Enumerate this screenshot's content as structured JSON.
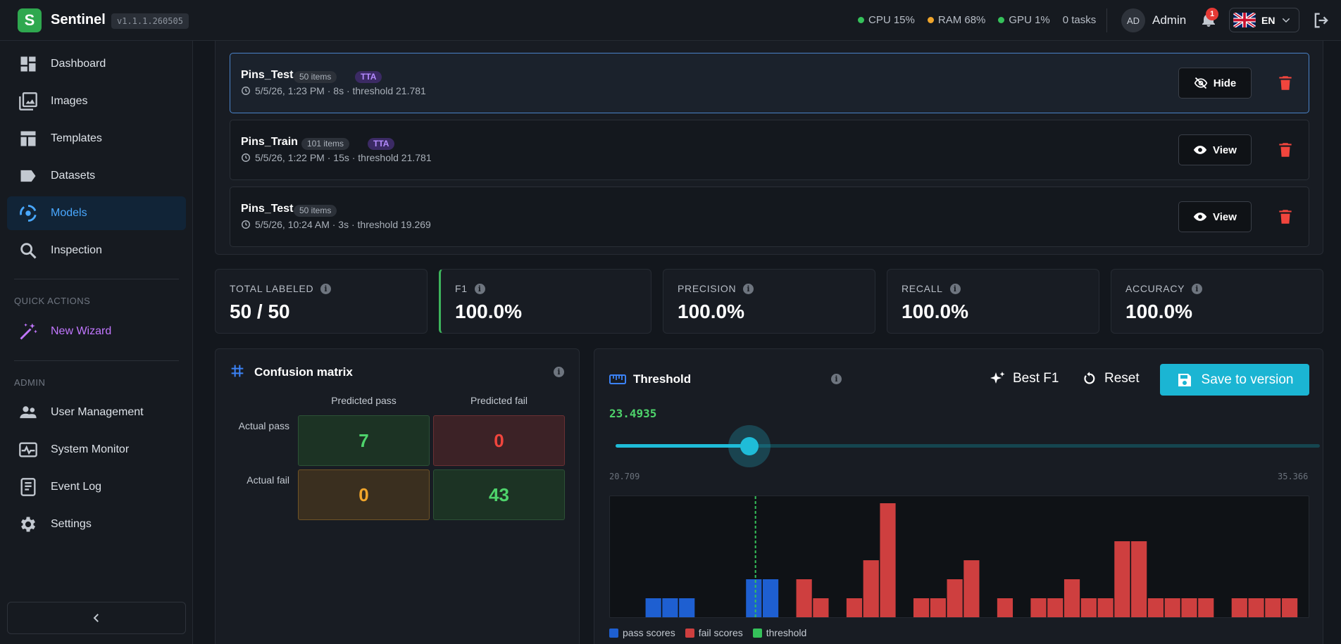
{
  "app": {
    "logo_letter": "S",
    "name": "Sentinel",
    "version": "v1.1.1.260505"
  },
  "status": {
    "cpu": "CPU 15%",
    "ram": "RAM 68%",
    "gpu": "GPU 1%",
    "tasks": "0 tasks",
    "cpu_color": "#35c15a",
    "ram_color": "#f0a52b",
    "gpu_color": "#35c15a"
  },
  "user": {
    "initials": "AD",
    "name": "Admin",
    "notifications": "1",
    "language": "EN"
  },
  "sidebar": {
    "items": [
      {
        "label": "Dashboard",
        "icon": "dashboard-icon"
      },
      {
        "label": "Images",
        "icon": "images-icon"
      },
      {
        "label": "Templates",
        "icon": "templates-icon"
      },
      {
        "label": "Datasets",
        "icon": "label-tag-icon"
      },
      {
        "label": "Models",
        "icon": "models-icon",
        "active": true
      },
      {
        "label": "Inspection",
        "icon": "search-icon"
      }
    ],
    "quick_actions_label": "QUICK ACTIONS",
    "wizard_label": "New Wizard",
    "admin_label": "ADMIN",
    "admin_items": [
      {
        "label": "User Management",
        "icon": "users-icon"
      },
      {
        "label": "System Monitor",
        "icon": "monitor-icon"
      },
      {
        "label": "Event Log",
        "icon": "event-log-icon"
      },
      {
        "label": "Settings",
        "icon": "gear-icon"
      }
    ]
  },
  "runs": [
    {
      "name": "Pins_Test",
      "items": "50 items",
      "tta": "TTA",
      "meta": "5/5/26, 1:23 PM · 8s · threshold 21.781",
      "action": "Hide",
      "selected": true
    },
    {
      "name": "Pins_Train",
      "items": "101 items",
      "tta": "TTA",
      "meta": "5/5/26, 1:22 PM · 15s · threshold 21.781",
      "action": "View",
      "selected": false
    },
    {
      "name": "Pins_Test",
      "items": "50 items",
      "tta": "",
      "meta": "5/5/26, 10:24 AM · 3s · threshold 19.269",
      "action": "View",
      "selected": false
    }
  ],
  "kpis": [
    {
      "label": "TOTAL LABELED",
      "value": "50 / 50"
    },
    {
      "label": "F1",
      "value": "100.0%"
    },
    {
      "label": "PRECISION",
      "value": "100.0%"
    },
    {
      "label": "RECALL",
      "value": "100.0%"
    },
    {
      "label": "ACCURACY",
      "value": "100.0%"
    }
  ],
  "confusion": {
    "title": "Confusion matrix",
    "col_pass": "Predicted pass",
    "col_fail": "Predicted fail",
    "row_pass": "Actual pass",
    "row_fail": "Actual fail",
    "tp": "7",
    "fn": "0",
    "fp": "0",
    "tn": "43"
  },
  "threshold": {
    "title": "Threshold",
    "value": "23.4935",
    "min": "20.709",
    "max": "35.366",
    "best_f1_label": "Best F1",
    "reset_label": "Reset",
    "save_label": "Save to version",
    "legend_pass": "pass scores",
    "legend_fail": "fail scores",
    "legend_threshold": "threshold"
  },
  "chart_data": {
    "type": "bar",
    "x_min": 20.709,
    "x_max": 35.366,
    "threshold": 23.4935,
    "bin_count": 40,
    "y_max": 6,
    "series": [
      {
        "name": "pass scores",
        "color": "#1e5fd1",
        "bins": [
          1,
          2,
          3,
          7,
          8
        ],
        "values": [
          1,
          1,
          1,
          2,
          2
        ]
      },
      {
        "name": "fail scores",
        "color": "#ce3f3f",
        "bins": [
          10,
          11,
          13,
          14,
          15,
          17,
          18,
          19,
          20,
          22,
          24,
          25,
          26,
          27,
          28,
          29,
          30,
          31,
          32,
          33,
          34,
          36,
          37,
          38,
          39
        ],
        "values": [
          2,
          1,
          1,
          3,
          6,
          1,
          1,
          2,
          3,
          1,
          1,
          1,
          2,
          1,
          1,
          4,
          4,
          1,
          1,
          1,
          1,
          1,
          1,
          1,
          1
        ]
      }
    ]
  }
}
